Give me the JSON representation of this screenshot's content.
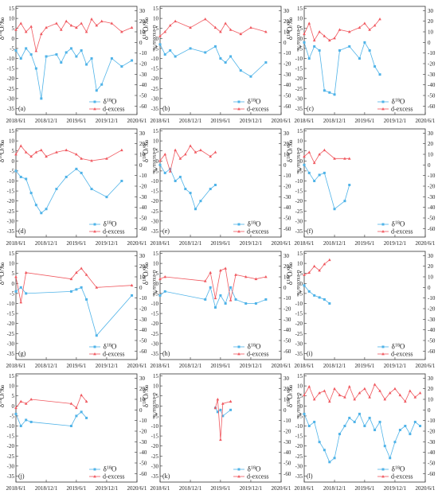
{
  "figure": {
    "y_left_label": "δ18O/‰",
    "y_right_label": "d-excess/‰",
    "legend": [
      "δ18O",
      "d-excess"
    ],
    "x_ticks": [
      "2018/6/1",
      "2018/12/1",
      "2019/6/1",
      "2019/12/1",
      "2020/6/1"
    ],
    "y_left_ticks": [
      15,
      10,
      5,
      0,
      -5,
      -10,
      -15,
      -20,
      -25,
      -30,
      -35
    ],
    "y_right_ticks": [
      30,
      20,
      10,
      0,
      -10,
      -20,
      -30,
      -40,
      -50,
      -60
    ],
    "colors": {
      "o18": "#4fb3e8",
      "dex": "#f0585f",
      "axis": "#333333"
    }
  },
  "chart_data": [
    {
      "type": "line",
      "panel_label": "(a)",
      "xlim": [
        "2018/6/1",
        "2020/6/1"
      ],
      "ylim_left": [
        -38,
        16
      ],
      "ylim_right": [
        -68,
        34
      ],
      "series": [
        {
          "name": "δ18O",
          "axis": "left",
          "x": [
            "2018/6/1",
            "2018/7/1",
            "2018/8/1",
            "2018/9/1",
            "2018/10/1",
            "2018/11/1",
            "2018/12/1",
            "2019/2/1",
            "2019/3/1",
            "2019/4/1",
            "2019/5/1",
            "2019/6/1",
            "2019/7/1",
            "2019/8/1",
            "2019/9/1",
            "2019/10/1",
            "2019/11/1",
            "2020/1/1",
            "2020/3/1",
            "2020/5/1"
          ],
          "y": [
            -6,
            -10,
            -5,
            -8,
            -15,
            -30,
            -9,
            -8,
            -12,
            -7,
            -5,
            -9,
            -6,
            -13,
            -10,
            -26,
            -23,
            -10,
            -14,
            -11
          ]
        },
        {
          "name": "d-excess",
          "axis": "right",
          "x": [
            "2018/6/1",
            "2018/7/1",
            "2018/8/1",
            "2018/9/1",
            "2018/10/1",
            "2018/11/1",
            "2018/12/1",
            "2019/2/1",
            "2019/3/1",
            "2019/4/1",
            "2019/5/1",
            "2019/6/1",
            "2019/7/1",
            "2019/8/1",
            "2019/9/1",
            "2019/10/1",
            "2019/11/1",
            "2020/1/1",
            "2020/3/1",
            "2020/5/1"
          ],
          "y": [
            12,
            18,
            10,
            15,
            -8,
            8,
            14,
            18,
            12,
            20,
            16,
            14,
            18,
            10,
            22,
            16,
            20,
            18,
            10,
            14
          ]
        }
      ]
    },
    {
      "type": "line",
      "panel_label": "(b)",
      "xlim": [
        "2018/6/1",
        "2020/6/1"
      ],
      "ylim_left": [
        -38,
        16
      ],
      "ylim_right": [
        -68,
        34
      ],
      "series": [
        {
          "name": "δ18O",
          "axis": "left",
          "x": [
            "2018/6/1",
            "2018/7/1",
            "2018/8/1",
            "2018/9/1",
            "2018/12/1",
            "2019/3/1",
            "2019/5/1",
            "2019/6/1",
            "2019/7/1",
            "2019/8/1",
            "2019/10/1",
            "2019/12/1",
            "2020/3/1"
          ],
          "y": [
            -3,
            -8,
            -6,
            -9,
            -5,
            -7,
            -4,
            -10,
            -12,
            -9,
            -16,
            -19,
            -12
          ]
        },
        {
          "name": "d-excess",
          "axis": "right",
          "x": [
            "2018/6/1",
            "2018/7/1",
            "2018/8/1",
            "2018/9/1",
            "2018/12/1",
            "2019/3/1",
            "2019/5/1",
            "2019/6/1",
            "2019/7/1",
            "2019/8/1",
            "2019/10/1",
            "2019/12/1",
            "2020/3/1"
          ],
          "y": [
            6,
            10,
            16,
            20,
            14,
            22,
            14,
            10,
            18,
            12,
            8,
            14,
            10
          ]
        }
      ]
    },
    {
      "type": "line",
      "panel_label": "(c)",
      "xlim": [
        "2018/6/1",
        "2020/6/1"
      ],
      "ylim_left": [
        -38,
        16
      ],
      "ylim_right": [
        -68,
        34
      ],
      "series": [
        {
          "name": "δ18O",
          "axis": "left",
          "x": [
            "2018/6/1",
            "2018/7/1",
            "2018/8/1",
            "2018/9/1",
            "2018/10/1",
            "2018/11/1",
            "2018/12/1",
            "2019/1/1",
            "2019/3/1",
            "2019/5/1",
            "2019/6/1",
            "2019/7/1",
            "2019/8/1",
            "2019/9/1"
          ],
          "y": [
            -2,
            -10,
            -4,
            -6,
            -26,
            -27,
            -28,
            -6,
            -4,
            -10,
            -2,
            -6,
            -14,
            -18
          ]
        },
        {
          "name": "d-excess",
          "axis": "right",
          "x": [
            "2018/6/1",
            "2018/7/1",
            "2018/8/1",
            "2018/9/1",
            "2018/10/1",
            "2018/11/1",
            "2018/12/1",
            "2019/1/1",
            "2019/3/1",
            "2019/5/1",
            "2019/6/1",
            "2019/7/1",
            "2019/8/1",
            "2019/9/1"
          ],
          "y": [
            8,
            18,
            2,
            10,
            6,
            2,
            4,
            12,
            10,
            14,
            18,
            12,
            16,
            22
          ]
        }
      ]
    },
    {
      "type": "line",
      "panel_label": "(d)",
      "xlim": [
        "2018/6/1",
        "2020/6/1"
      ],
      "ylim_left": [
        -38,
        16
      ],
      "ylim_right": [
        -68,
        34
      ],
      "series": [
        {
          "name": "δ18O",
          "axis": "left",
          "x": [
            "2018/6/1",
            "2018/7/1",
            "2018/8/1",
            "2018/9/1",
            "2018/10/1",
            "2018/11/1",
            "2018/12/1",
            "2019/2/1",
            "2019/4/1",
            "2019/6/1",
            "2019/7/1",
            "2019/9/1",
            "2019/12/1",
            "2020/3/1"
          ],
          "y": [
            -5,
            -8,
            -9,
            -16,
            -22,
            -26,
            -24,
            -14,
            -8,
            -4,
            -6,
            -14,
            -18,
            -10
          ]
        },
        {
          "name": "d-excess",
          "axis": "right",
          "x": [
            "2018/6/1",
            "2018/7/1",
            "2018/8/1",
            "2018/9/1",
            "2018/10/1",
            "2018/11/1",
            "2018/12/1",
            "2019/2/1",
            "2019/4/1",
            "2019/6/1",
            "2019/7/1",
            "2019/9/1",
            "2019/12/1",
            "2020/3/1"
          ],
          "y": [
            10,
            18,
            12,
            8,
            12,
            14,
            8,
            12,
            14,
            10,
            6,
            4,
            6,
            14
          ]
        }
      ]
    },
    {
      "type": "line",
      "panel_label": "(e)",
      "xlim": [
        "2018/6/1",
        "2020/6/1"
      ],
      "ylim_left": [
        -38,
        16
      ],
      "ylim_right": [
        -68,
        34
      ],
      "series": [
        {
          "name": "δ18O",
          "axis": "left",
          "x": [
            "2018/6/1",
            "2018/7/1",
            "2018/8/1",
            "2018/9/1",
            "2018/10/1",
            "2018/11/1",
            "2018/12/1",
            "2019/1/1",
            "2019/2/1",
            "2019/4/1",
            "2019/5/1"
          ],
          "y": [
            -2,
            -6,
            -4,
            -10,
            -8,
            -14,
            -16,
            -24,
            -20,
            -14,
            -12
          ]
        },
        {
          "name": "d-excess",
          "axis": "right",
          "x": [
            "2018/6/1",
            "2018/7/1",
            "2018/8/1",
            "2018/9/1",
            "2018/10/1",
            "2018/11/1",
            "2018/12/1",
            "2019/1/1",
            "2019/2/1",
            "2019/4/1",
            "2019/5/1"
          ],
          "y": [
            4,
            10,
            -6,
            14,
            6,
            10,
            18,
            12,
            14,
            8,
            12
          ]
        }
      ]
    },
    {
      "type": "line",
      "panel_label": "(f)",
      "xlim": [
        "2018/6/1",
        "2020/6/1"
      ],
      "ylim_left": [
        -38,
        16
      ],
      "ylim_right": [
        -68,
        34
      ],
      "series": [
        {
          "name": "δ18O",
          "axis": "left",
          "x": [
            "2018/6/1",
            "2018/7/1",
            "2018/8/1",
            "2018/9/1",
            "2018/10/1",
            "2018/12/1",
            "2019/2/1",
            "2019/3/1"
          ],
          "y": [
            -2,
            -6,
            -10,
            -7,
            -6,
            -24,
            -20,
            -12
          ]
        },
        {
          "name": "d-excess",
          "axis": "right",
          "x": [
            "2018/6/1",
            "2018/7/1",
            "2018/8/1",
            "2018/9/1",
            "2018/10/1",
            "2018/12/1",
            "2019/2/1",
            "2019/3/1"
          ],
          "y": [
            8,
            12,
            2,
            10,
            14,
            6,
            6,
            6
          ]
        }
      ]
    },
    {
      "type": "line",
      "panel_label": "(g)",
      "xlim": [
        "2018/6/1",
        "2020/6/1"
      ],
      "ylim_left": [
        -38,
        16
      ],
      "ylim_right": [
        -68,
        34
      ],
      "series": [
        {
          "name": "δ18O",
          "axis": "left",
          "x": [
            "2018/6/1",
            "2018/7/1",
            "2018/8/1",
            "2019/5/1",
            "2019/6/1",
            "2019/7/1",
            "2019/8/1",
            "2019/10/1",
            "2020/5/1"
          ],
          "y": [
            -4,
            -2,
            -5,
            -4,
            -3,
            -2,
            -8,
            -26,
            -6
          ]
        },
        {
          "name": "d-excess",
          "axis": "right",
          "x": [
            "2018/6/1",
            "2018/7/1",
            "2018/8/1",
            "2019/5/1",
            "2019/6/1",
            "2019/7/1",
            "2019/8/1",
            "2019/10/1",
            "2020/5/1"
          ],
          "y": [
            10,
            -14,
            14,
            8,
            14,
            18,
            12,
            0,
            2
          ]
        }
      ]
    },
    {
      "type": "line",
      "panel_label": "(h)",
      "xlim": [
        "2018/6/1",
        "2020/6/1"
      ],
      "ylim_left": [
        -38,
        16
      ],
      "ylim_right": [
        -68,
        34
      ],
      "series": [
        {
          "name": "δ18O",
          "axis": "left",
          "x": [
            "2018/6/1",
            "2018/7/1",
            "2019/3/1",
            "2019/4/1",
            "2019/5/1",
            "2019/6/1",
            "2019/7/1",
            "2019/8/1",
            "2019/9/1",
            "2019/11/1",
            "2020/1/1",
            "2020/3/1"
          ],
          "y": [
            -6,
            -4,
            -8,
            -2,
            -12,
            -6,
            -10,
            -2,
            -8,
            -10,
            -10,
            -8
          ]
        },
        {
          "name": "d-excess",
          "axis": "right",
          "x": [
            "2018/6/1",
            "2018/7/1",
            "2019/3/1",
            "2019/4/1",
            "2019/5/1",
            "2019/6/1",
            "2019/7/1",
            "2019/8/1",
            "2019/9/1",
            "2019/11/1",
            "2020/1/1",
            "2020/3/1"
          ],
          "y": [
            8,
            10,
            6,
            14,
            -10,
            16,
            18,
            -12,
            12,
            10,
            8,
            10
          ]
        }
      ]
    },
    {
      "type": "line",
      "panel_label": "(i)",
      "xlim": [
        "2018/6/1",
        "2020/6/1"
      ],
      "ylim_left": [
        -38,
        16
      ],
      "ylim_right": [
        -68,
        34
      ],
      "series": [
        {
          "name": "δ18O",
          "axis": "left",
          "x": [
            "2018/6/1",
            "2018/7/1",
            "2018/8/1",
            "2018/9/1",
            "2018/10/1",
            "2018/11/1"
          ],
          "y": [
            -1,
            -4,
            -6,
            -7,
            -8,
            -10
          ]
        },
        {
          "name": "d-excess",
          "axis": "right",
          "x": [
            "2018/6/1",
            "2018/7/1",
            "2018/8/1",
            "2018/9/1",
            "2018/10/1",
            "2018/11/1"
          ],
          "y": [
            12,
            14,
            20,
            16,
            22,
            26
          ]
        }
      ]
    },
    {
      "type": "line",
      "panel_label": "(j)",
      "xlim": [
        "2018/6/1",
        "2020/6/1"
      ],
      "ylim_left": [
        -38,
        16
      ],
      "ylim_right": [
        -68,
        34
      ],
      "series": [
        {
          "name": "δ18O",
          "axis": "left",
          "x": [
            "2018/6/1",
            "2018/7/1",
            "2018/8/1",
            "2018/9/1",
            "2019/5/1",
            "2019/6/1",
            "2019/7/1",
            "2019/8/1"
          ],
          "y": [
            -4,
            -10,
            -7,
            -8,
            -10,
            -5,
            -3,
            -6
          ]
        },
        {
          "name": "d-excess",
          "axis": "right",
          "x": [
            "2018/6/1",
            "2018/7/1",
            "2018/8/1",
            "2018/9/1",
            "2019/5/1",
            "2019/6/1",
            "2019/7/1",
            "2019/8/1"
          ],
          "y": [
            2,
            8,
            6,
            10,
            6,
            2,
            14,
            8
          ]
        }
      ]
    },
    {
      "type": "line",
      "panel_label": "(k)",
      "xlim": [
        "2018/6/1",
        "2020/6/1"
      ],
      "ylim_left": [
        -38,
        16
      ],
      "ylim_right": [
        -68,
        34
      ],
      "series": [
        {
          "name": "δ18O",
          "axis": "left",
          "x": [
            "2019/5/1",
            "2019/5/15",
            "2019/6/1",
            "2019/6/15",
            "2019/8/1"
          ],
          "y": [
            -1,
            -3,
            -2,
            -5,
            -2
          ]
        },
        {
          "name": "d-excess",
          "axis": "right",
          "x": [
            "2019/5/1",
            "2019/5/15",
            "2019/6/1",
            "2019/6/15",
            "2019/8/1"
          ],
          "y": [
            2,
            10,
            -28,
            6,
            8
          ]
        }
      ]
    },
    {
      "type": "line",
      "panel_label": "(l)",
      "xlim": [
        "2018/6/1",
        "2020/6/1"
      ],
      "ylim_left": [
        -38,
        16
      ],
      "ylim_right": [
        -68,
        34
      ],
      "series": [
        {
          "name": "δ18O",
          "axis": "left",
          "x": [
            "2018/6/1",
            "2018/7/1",
            "2018/8/1",
            "2018/9/1",
            "2018/10/1",
            "2018/11/1",
            "2018/12/1",
            "2019/1/1",
            "2019/2/1",
            "2019/3/1",
            "2019/4/1",
            "2019/5/1",
            "2019/6/1",
            "2019/7/1",
            "2019/8/1",
            "2019/9/1",
            "2019/10/1",
            "2019/11/1",
            "2019/12/1",
            "2020/1/1",
            "2020/2/1",
            "2020/3/1",
            "2020/4/1",
            "2020/5/1"
          ],
          "y": [
            -4,
            -10,
            -8,
            -18,
            -22,
            -28,
            -26,
            -14,
            -10,
            -6,
            -8,
            -4,
            -10,
            -6,
            -12,
            -8,
            -20,
            -26,
            -18,
            -12,
            -10,
            -14,
            -8,
            -10
          ]
        },
        {
          "name": "d-excess",
          "axis": "right",
          "x": [
            "2018/6/1",
            "2018/7/1",
            "2018/8/1",
            "2018/9/1",
            "2018/10/1",
            "2018/11/1",
            "2018/12/1",
            "2019/1/1",
            "2019/2/1",
            "2019/3/1",
            "2019/4/1",
            "2019/5/1",
            "2019/6/1",
            "2019/7/1",
            "2019/8/1",
            "2019/9/1",
            "2019/10/1",
            "2019/11/1",
            "2019/12/1",
            "2020/1/1",
            "2020/2/1",
            "2020/3/1",
            "2020/4/1",
            "2020/5/1"
          ],
          "y": [
            14,
            22,
            10,
            16,
            18,
            8,
            20,
            14,
            12,
            22,
            10,
            16,
            20,
            12,
            24,
            18,
            10,
            16,
            20,
            14,
            8,
            18,
            12,
            16
          ]
        }
      ]
    }
  ]
}
